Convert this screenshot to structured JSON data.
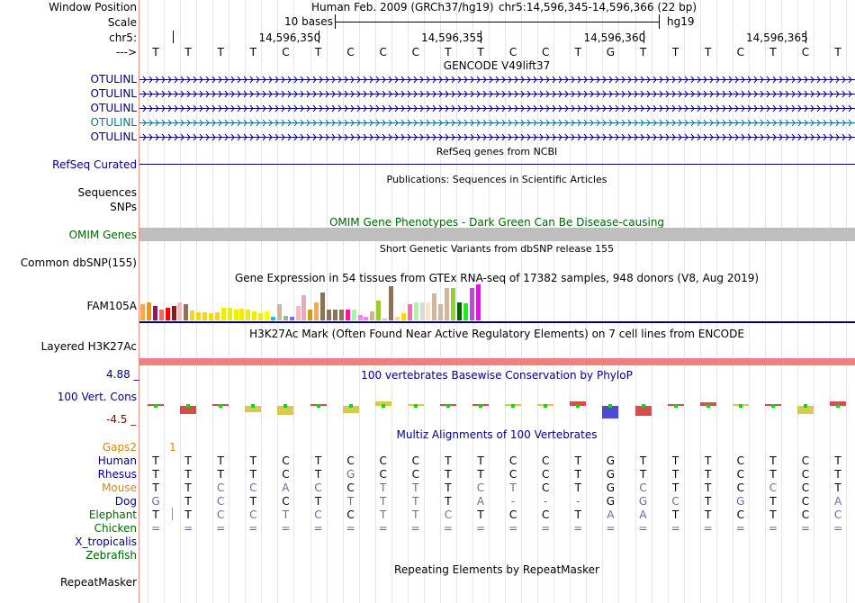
{
  "header": {
    "window_position_label": "Window Position",
    "assembly": "Human Feb. 2009 (GRCh37/hg19)",
    "position": "chr5:14,596,345-14,596,366 (22 bp)",
    "scale_label": "Scale",
    "scale_text": "10 bases",
    "db": "hg19",
    "chrom_label": "chr5:",
    "strand_label": "--->",
    "coords": [
      "14,596,350",
      "14,596,355",
      "14,596,360",
      "14,596,365"
    ]
  },
  "sequence": [
    "T",
    "T",
    "T",
    "T",
    "C",
    "T",
    "C",
    "C",
    "C",
    "T",
    "T",
    "C",
    "C",
    "T",
    "G",
    "T",
    "T",
    "T",
    "C",
    "T",
    "C",
    "T"
  ],
  "gencode": {
    "title": "GENCODE V49lift37",
    "rows": [
      "OTULINL",
      "OTULINL",
      "OTULINL",
      "OTULINL",
      "OTULINL"
    ],
    "colors": [
      "#000080",
      "#000080",
      "#000080",
      "#0e7490",
      "#000080"
    ]
  },
  "refseq": {
    "title": "RefSeq genes from NCBI",
    "label": "RefSeq Curated"
  },
  "publications": {
    "title": "Publications: Sequences in Scientific Articles",
    "label1": "Sequences",
    "label2": "SNPs"
  },
  "omim": {
    "title": "OMIM Gene Phenotypes - Dark Green Can Be Disease-causing",
    "label": "OMIM Genes"
  },
  "dbsnp": {
    "title": "Short Genetic Variants from dbSNP release 155",
    "label": "Common dbSNP(155)"
  },
  "gtex": {
    "title": "Gene Expression in 54 tissues from GTEx RNA-seq of 17382 samples, 948 donors (V8, Aug 2019)",
    "label": "FAM105A",
    "values": [
      0.45,
      0.5,
      0.4,
      0.3,
      0.35,
      0.4,
      0.5,
      0.45,
      0.28,
      0.22,
      0.22,
      0.2,
      0.22,
      0.35,
      0.35,
      0.3,
      0.32,
      0.3,
      0.25,
      0.2,
      0.25,
      0.1,
      0.45,
      0.12,
      0.1,
      0.4,
      0.7,
      0.3,
      0.5,
      0.78,
      0.3,
      0.3,
      0.3,
      0.3,
      0.3,
      0.15,
      0.1,
      0.25,
      0.55,
      0.05,
      0.95,
      0.1,
      0.2,
      0.45,
      0.5,
      0.5,
      0.5,
      0.75,
      0.45,
      0.9,
      0.9,
      0.5,
      0.48,
      0.9,
      1.0
    ],
    "colors": [
      "#ffa54f",
      "#ee9a00",
      "#8b1c62",
      "#ee6a50",
      "#ff0000",
      "#8b1a1a",
      "#ffb6c1",
      "#8b7355",
      "#ffd700",
      "#ffd700",
      "#ffd700",
      "#ffd700",
      "#ffd700",
      "#eeee00",
      "#eeee00",
      "#eeee00",
      "#eeee00",
      "#eeee00",
      "#eeee00",
      "#eeee00",
      "#ffff00",
      "#00ced1",
      "#cdb79e",
      "#8fbc8f",
      "#7a67ee",
      "#ffb6c1",
      "#eea9b8",
      "#cd9b1d",
      "#ffa54f",
      "#8b7355",
      "#8b7355",
      "#8b7355",
      "#8b7355",
      "#ff1493",
      "#9aff9a",
      "#ee82ee",
      "#ee82ee",
      "#d2b48c",
      "#9acd32",
      "#cdc9c9",
      "#8b7355",
      "#eedc82",
      "#ffd700",
      "#ff69b4",
      "#b4eeb4",
      "#d9d9d9",
      "#ffe4b5",
      "#cdb79e",
      "#cdb79e",
      "#cdb79e",
      "#9acd32",
      "#006400",
      "#00ff00",
      "#b452cd",
      "#ff00ff"
    ]
  },
  "h3k27ac": {
    "title": "H3K27Ac Mark (Often Found Near Active Regulatory Elements) on 7 cell lines from ENCODE",
    "label": "Layered H3K27Ac",
    "color": "#f08080"
  },
  "cons": {
    "title": "100 vertebrates Basewise Conservation by PhyloP",
    "label": "100 Vert. Cons",
    "max": "4.88 _",
    "min": "-4.5 _",
    "logo": [
      "T",
      "T",
      "T",
      "C",
      "C",
      "T",
      "C",
      "C",
      "C",
      "T",
      "T",
      "C",
      "C",
      "T",
      "G",
      "T",
      "T",
      "T",
      "C",
      "T",
      "C",
      "T"
    ]
  },
  "multiz": {
    "title": "Multiz Alignments of 100 Vertebrates",
    "gaps_label": "Gaps2",
    "gap_value": "1",
    "species": [
      {
        "name": "Human",
        "seq": [
          "T",
          "T",
          "T",
          "T",
          "C",
          "T",
          "C",
          "C",
          "C",
          "T",
          "T",
          "C",
          "C",
          "T",
          "G",
          "T",
          "T",
          "T",
          "C",
          "T",
          "C",
          "T"
        ]
      },
      {
        "name": "Rhesus",
        "seq": [
          "T",
          "T",
          "T",
          "T",
          "C",
          "T",
          "G",
          "C",
          "C",
          "T",
          "T",
          "C",
          "C",
          "T",
          "G",
          "T",
          "T",
          "T",
          "C",
          "T",
          "C",
          "T"
        ]
      },
      {
        "name": "Mouse",
        "seq": [
          "T",
          "T",
          "C",
          "C",
          "A",
          "C",
          "C",
          "T",
          "T",
          "T",
          "C",
          "T",
          "C",
          "T",
          "G",
          "C",
          "T",
          "T",
          "C",
          "C",
          "C",
          "T"
        ]
      },
      {
        "name": "Dog",
        "seq": [
          "G",
          "T",
          "C",
          "T",
          "C",
          "T",
          "T",
          "T",
          "T",
          "T",
          "A",
          "-",
          "-",
          "-",
          "G",
          "G",
          "C",
          "T",
          "G",
          "T",
          "C",
          "A"
        ]
      },
      {
        "name": "Elephant",
        "seq": [
          "T",
          "T",
          "C",
          "C",
          "T",
          "C",
          "C",
          "T",
          "T",
          "C",
          "T",
          "C",
          "C",
          "T",
          "A",
          "A",
          "T",
          "T",
          "C",
          "T",
          "C",
          "C"
        ]
      },
      {
        "name": "Chicken",
        "seq": [
          "=",
          "=",
          "=",
          "=",
          "=",
          "=",
          "=",
          "=",
          "=",
          "=",
          "=",
          "=",
          "=",
          "=",
          "=",
          "=",
          "=",
          "=",
          "=",
          "=",
          "=",
          "="
        ]
      },
      {
        "name": "X_tropicalis",
        "seq": []
      },
      {
        "name": "Zebrafish",
        "seq": []
      }
    ]
  },
  "repeatmasker": {
    "title": "Repeating Elements by RepeatMasker",
    "label": "RepeatMasker"
  }
}
